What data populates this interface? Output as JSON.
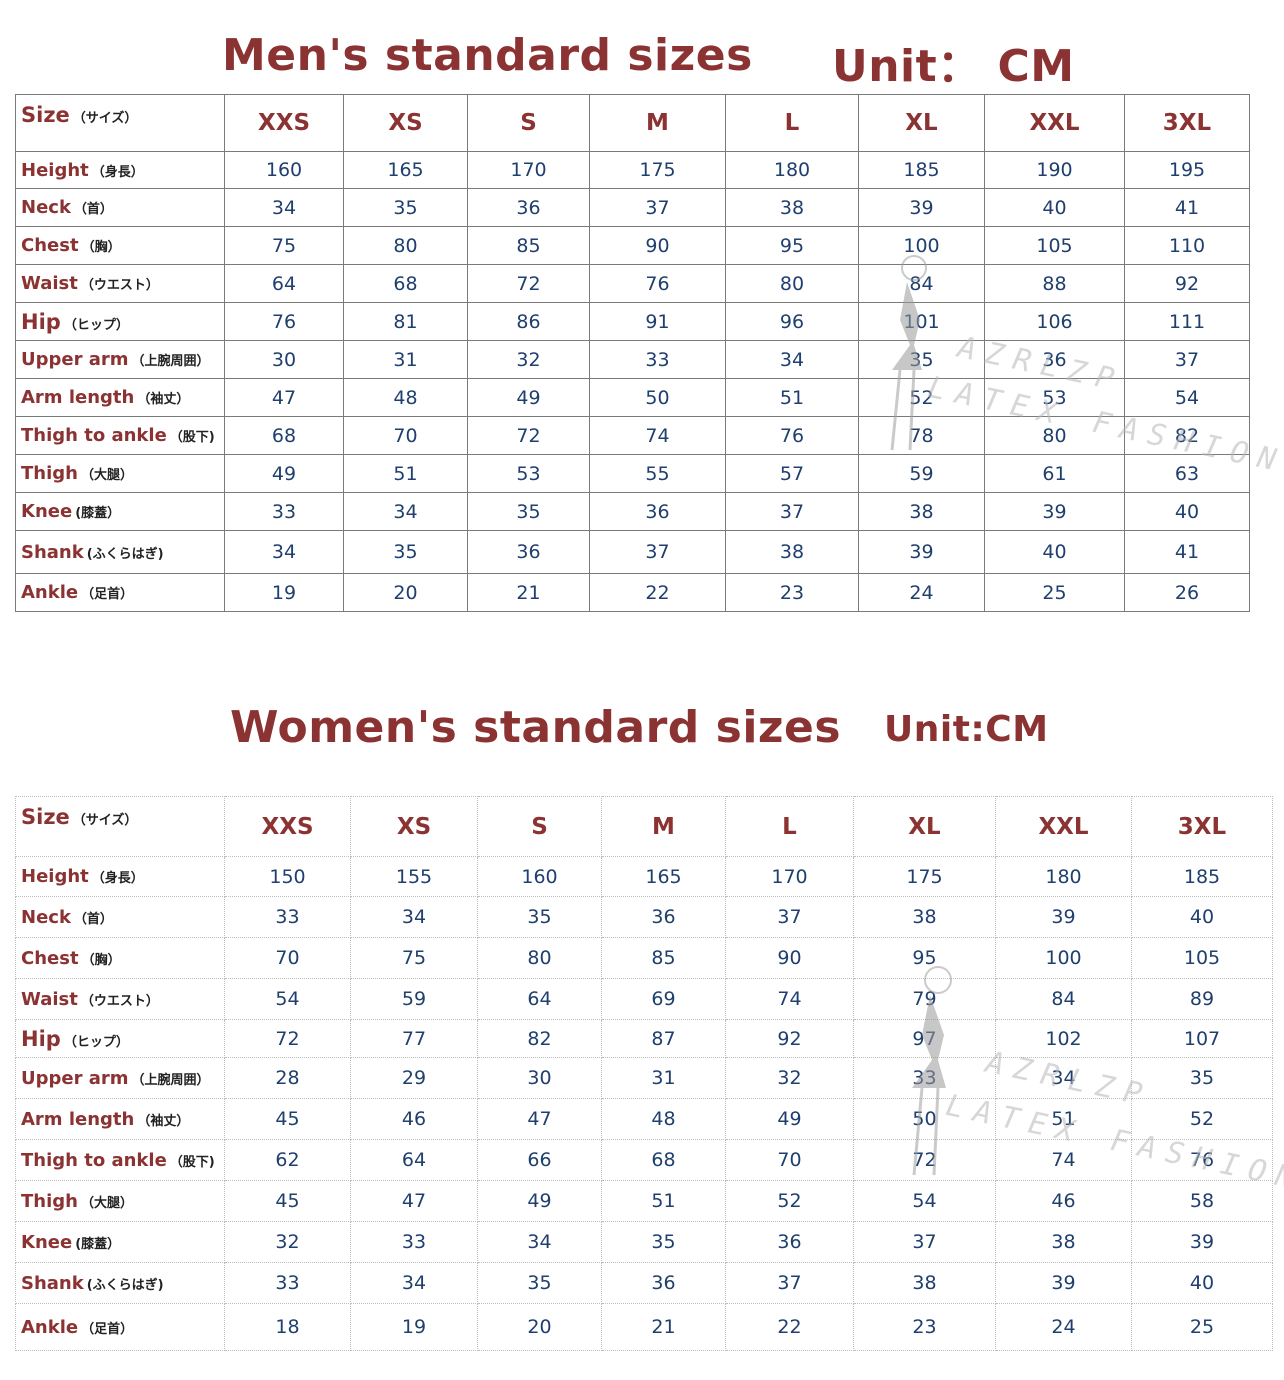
{
  "sizes": [
    "XXS",
    "XS",
    "S",
    "M",
    "L",
    "XL",
    "XXL",
    "3XL"
  ],
  "men": {
    "title": "Men's standard sizes",
    "unit": "Unit： CM",
    "size_label": "Size",
    "size_label_jp": "（サイズ）",
    "rows": [
      {
        "label": "Height",
        "jp": "（身長）",
        "values": [
          "160",
          "165",
          "170",
          "175",
          "180",
          "185",
          "190",
          "195"
        ]
      },
      {
        "label": "Neck",
        "jp": "（首）",
        "values": [
          "34",
          "35",
          "36",
          "37",
          "38",
          "39",
          "40",
          "41"
        ]
      },
      {
        "label": "Chest",
        "jp": "（胸）",
        "values": [
          "75",
          "80",
          "85",
          "90",
          "95",
          "100",
          "105",
          "110"
        ]
      },
      {
        "label": "Waist",
        "jp": "（ウエスト）",
        "values": [
          "64",
          "68",
          "72",
          "76",
          "80",
          "84",
          "88",
          "92"
        ]
      },
      {
        "label": "Hip",
        "jp": "（ヒップ）",
        "values": [
          "76",
          "81",
          "86",
          "91",
          "96",
          "101",
          "106",
          "111"
        ]
      },
      {
        "label": "Upper arm",
        "jp": "（上腕周囲）",
        "values": [
          "30",
          "31",
          "32",
          "33",
          "34",
          "35",
          "36",
          "37"
        ]
      },
      {
        "label": "Arm length",
        "jp": "（袖丈）",
        "values": [
          "47",
          "48",
          "49",
          "50",
          "51",
          "52",
          "53",
          "54"
        ]
      },
      {
        "label": "Thigh to ankle",
        "jp": "（股下)",
        "values": [
          "68",
          "70",
          "72",
          "74",
          "76",
          "78",
          "80",
          "82"
        ]
      },
      {
        "label": "Thigh",
        "jp": "（大腿）",
        "values": [
          "49",
          "51",
          "53",
          "55",
          "57",
          "59",
          "61",
          "63"
        ]
      },
      {
        "label": "Knee",
        "jp": "(膝蓋）",
        "values": [
          "33",
          "34",
          "35",
          "36",
          "37",
          "38",
          "39",
          "40"
        ]
      },
      {
        "label": "Shank",
        "jp": "(ふくらはぎ)",
        "values": [
          "34",
          "35",
          "36",
          "37",
          "38",
          "39",
          "40",
          "41"
        ]
      },
      {
        "label": "Ankle",
        "jp": "（足首）",
        "values": [
          "19",
          "20",
          "21",
          "22",
          "23",
          "24",
          "25",
          "26"
        ]
      }
    ]
  },
  "women": {
    "title": "Women's standard sizes",
    "unit": "Unit:CM",
    "size_label": "Size",
    "size_label_jp": "（サイズ）",
    "rows": [
      {
        "label": "Height",
        "jp": "（身長）",
        "values": [
          "150",
          "155",
          "160",
          "165",
          "170",
          "175",
          "180",
          "185"
        ]
      },
      {
        "label": "Neck",
        "jp": "（首）",
        "values": [
          "33",
          "34",
          "35",
          "36",
          "37",
          "38",
          "39",
          "40"
        ]
      },
      {
        "label": "Chest",
        "jp": "（胸）",
        "values": [
          "70",
          "75",
          "80",
          "85",
          "90",
          "95",
          "100",
          "105"
        ]
      },
      {
        "label": "Waist",
        "jp": "（ウエスト）",
        "values": [
          "54",
          "59",
          "64",
          "69",
          "74",
          "79",
          "84",
          "89"
        ]
      },
      {
        "label": "Hip",
        "jp": "（ヒップ）",
        "values": [
          "72",
          "77",
          "82",
          "87",
          "92",
          "97",
          "102",
          "107"
        ]
      },
      {
        "label": "Upper arm",
        "jp": "（上腕周囲）",
        "values": [
          "28",
          "29",
          "30",
          "31",
          "32",
          "33",
          "34",
          "35"
        ]
      },
      {
        "label": "Arm length",
        "jp": "（袖丈）",
        "values": [
          "45",
          "46",
          "47",
          "48",
          "49",
          "50",
          "51",
          "52"
        ]
      },
      {
        "label": "Thigh to ankle",
        "jp": "（股下)",
        "values": [
          "62",
          "64",
          "66",
          "68",
          "70",
          "72",
          "74",
          "76"
        ]
      },
      {
        "label": "Thigh",
        "jp": "（大腿）",
        "values": [
          "45",
          "47",
          "49",
          "51",
          "52",
          "54",
          "46",
          "58"
        ]
      },
      {
        "label": "Knee",
        "jp": "(膝蓋）",
        "values": [
          "32",
          "33",
          "34",
          "35",
          "36",
          "37",
          "38",
          "39"
        ]
      },
      {
        "label": "Shank",
        "jp": "(ふくらはぎ)",
        "values": [
          "33",
          "34",
          "35",
          "36",
          "37",
          "38",
          "39",
          "40"
        ]
      },
      {
        "label": "Ankle",
        "jp": "（足首）",
        "values": [
          "18",
          "19",
          "20",
          "21",
          "22",
          "23",
          "24",
          "25"
        ]
      }
    ]
  },
  "watermark": {
    "line1": "AZRLZP",
    "line2": "LATEX FASHION"
  }
}
